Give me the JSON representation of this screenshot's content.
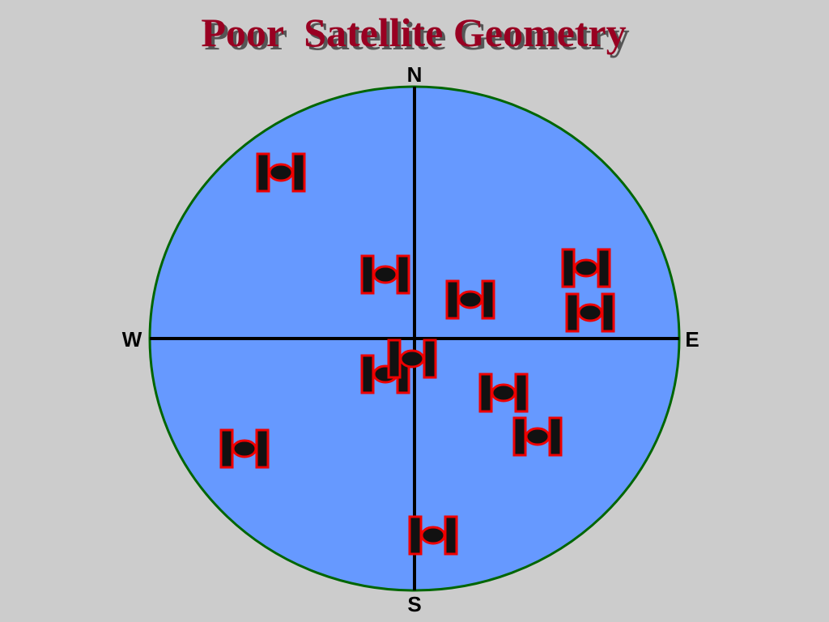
{
  "header": {
    "title": "Poor  Satellite Geometry"
  },
  "compass": {
    "north": "N",
    "south": "S",
    "west": "W",
    "east": "E"
  }
}
